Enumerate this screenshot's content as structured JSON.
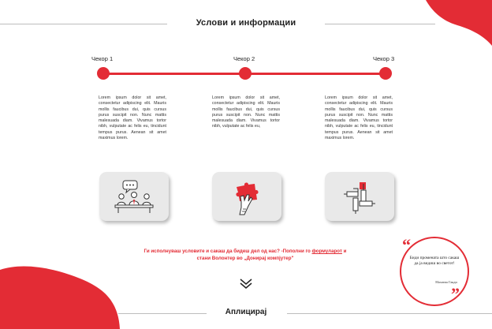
{
  "header": {
    "title": "Услови и информации"
  },
  "steps": [
    {
      "label": "Чекор 1",
      "text": "Lorem ipsum dolor sit amet, consectetur adipiscing elit. Mauris mollis faucibus dui, quis cursus purus suscipit non. Nunc mattis malesuada diam. Vivamus tortor nibh, vulputate ac felis eu, tincidunt tempus purus. Aenean sit amet maximus lorem."
    },
    {
      "label": "Чекор 2",
      "text": "Lorem ipsum dolor sit amet, consectetur adipiscing elit. Mauris mollis faucibus dui, quis cursus purus suscipit non. Nunc mattis malesuada diam. Vivamus tortor nibh, vulputate ac felis eu,"
    },
    {
      "label": "Чекор 3",
      "text": "Lorem ipsum dolor sit amet, consectetur adipiscing elit. Mauris mollis faucibus dui, quis cursus purus suscipit non. Nunc mattis malesuada diam. Vivamus tortor nibh, vulputate ac felis eu, tincidunt tempus purus. Aenean sit amet maximus lorem."
    }
  ],
  "icons": [
    "meeting-icon",
    "puzzle-hand-icon",
    "joined-hands-icon"
  ],
  "cta": {
    "part1": "Ги исполнуваш условите и сакаш да бидеш дел од нас? -Пополни го ",
    "link": "формуларот",
    "part2": " и стани Волонтер во „Донирај компјутер\""
  },
  "quote": {
    "text": "Биди промената што сакаш да ја видиш во светот!",
    "author": "Махатма Ганди"
  },
  "footer": {
    "label": "Аплицирај"
  },
  "colors": {
    "accent": "#e32c35",
    "card": "#e9e9e9",
    "line": "#bdbdbd"
  }
}
